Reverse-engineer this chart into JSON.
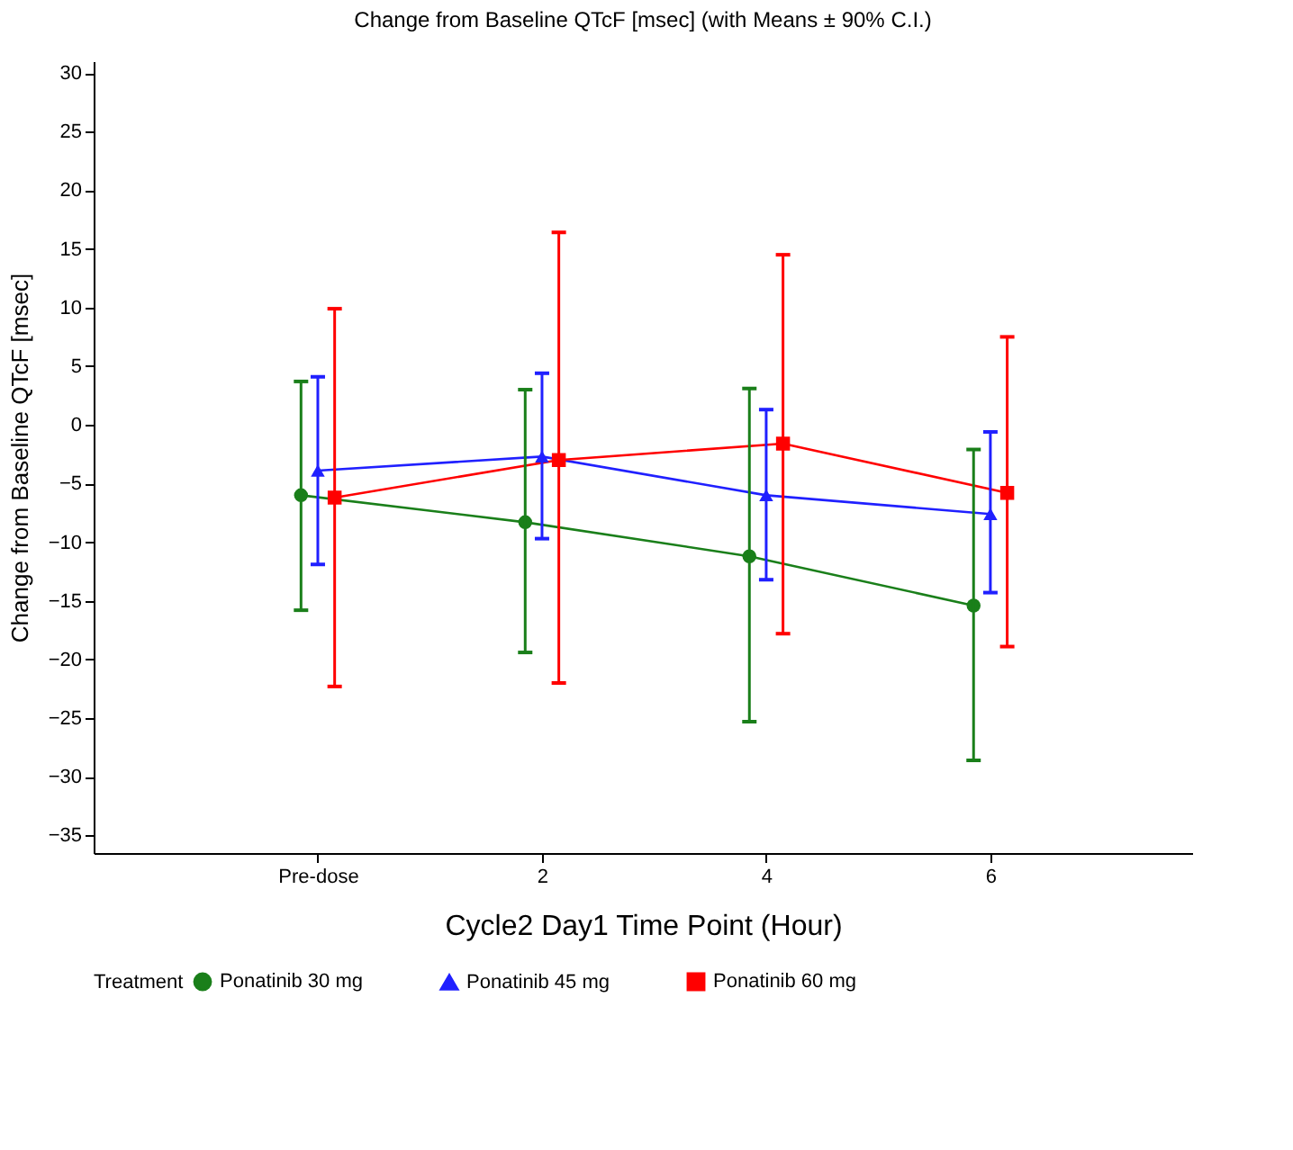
{
  "chart_data": {
    "type": "line",
    "title": "Change from Baseline QTcF [msec] (with Means ± 90% C.I.)",
    "xlabel": "Cycle2 Day1 Time Point (Hour)",
    "ylabel": "Change from Baseline QTcF [msec]",
    "legend_title": "Treatment",
    "categories": [
      "Pre-dose",
      "2",
      "4",
      "6"
    ],
    "series": [
      {
        "name": "Ponatinib 30 mg",
        "color": "#1a7f1a",
        "marker": "circle",
        "values": [
          -6.0,
          -8.3,
          -11.2,
          -15.4
        ],
        "errors": [
          [
            -15.8,
            3.7
          ],
          [
            -19.4,
            3.0
          ],
          [
            -25.3,
            3.1
          ],
          [
            -28.6,
            -2.1
          ]
        ]
      },
      {
        "name": "Ponatinib 45 mg",
        "color": "#2020ff",
        "marker": "triangle",
        "values": [
          -3.9,
          -2.7,
          -6.0,
          -7.6
        ],
        "errors": [
          [
            -11.9,
            4.1
          ],
          [
            -9.7,
            4.4
          ],
          [
            -13.2,
            1.3
          ],
          [
            -14.3,
            -0.6
          ]
        ]
      },
      {
        "name": "Ponatinib 60 mg",
        "color": "#ff0000",
        "marker": "square",
        "values": [
          -6.2,
          -3.0,
          -1.6,
          -5.8
        ],
        "errors": [
          [
            -22.3,
            9.9
          ],
          [
            -22.0,
            16.4
          ],
          [
            -17.8,
            14.5
          ],
          [
            -18.9,
            7.5
          ]
        ]
      }
    ],
    "ylim": [
      -36.5,
      31
    ],
    "yticks": [
      -35,
      -30,
      -25,
      -20,
      -15,
      -10,
      -5,
      0,
      5,
      10,
      15,
      20,
      25,
      30
    ],
    "grid": false,
    "legend": "bottom",
    "line_style": "solid"
  }
}
